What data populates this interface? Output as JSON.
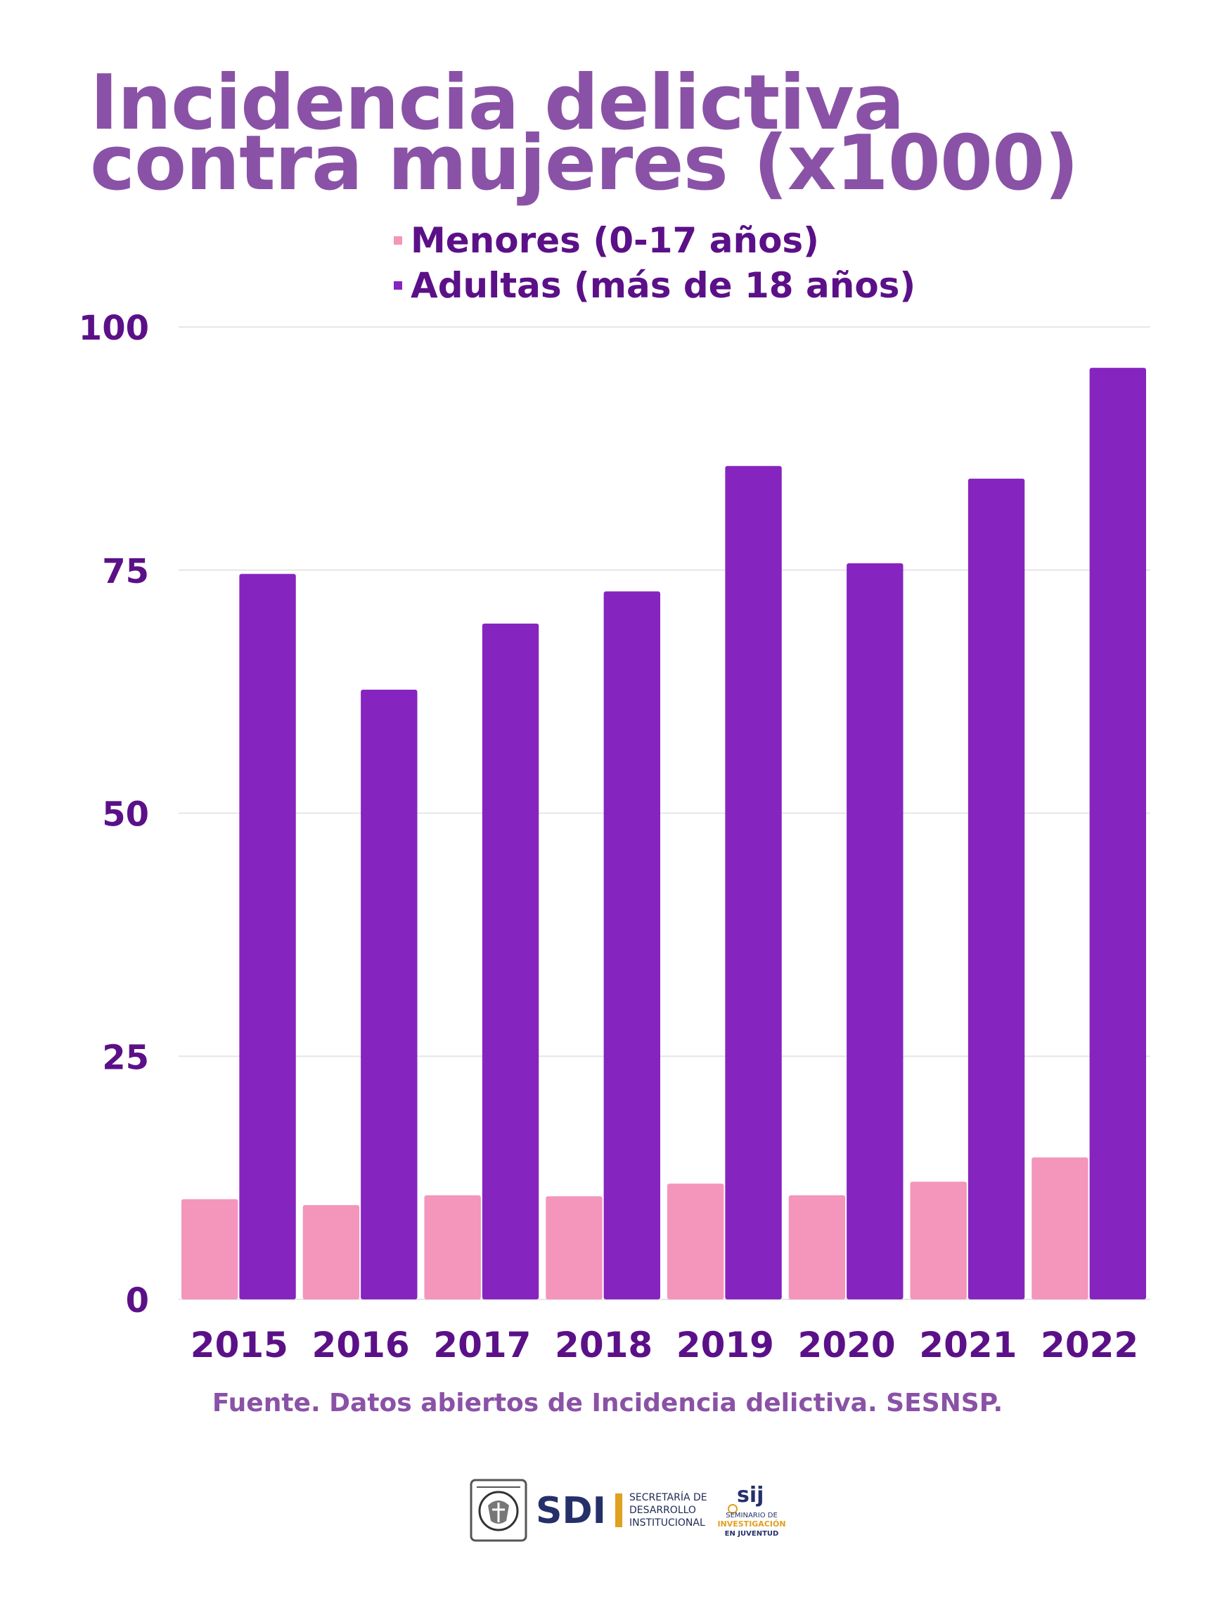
{
  "title": "Incidencia delictiva contra mujeres (x1000)",
  "colors": {
    "title": "#8a52a6",
    "axis_text": "#5b1088",
    "source": "#8a52a6",
    "grid": "#e6e6e6",
    "menores": "#f495bb",
    "adultas": "#8624bf"
  },
  "legend": [
    {
      "label": "Menores (0-17 años)",
      "color": "#f495bb"
    },
    {
      "label": "Adultas (más de 18 años)",
      "color": "#8624bf"
    }
  ],
  "source": "Fuente. Datos abiertos de Incidencia delictiva. SESNSP.",
  "logos": {
    "unam": "unam-seal",
    "sdi_mark": "SDI",
    "sdi_text": [
      "SECRETARÍA DE",
      "DESARROLLO",
      "INSTITUCIONAL"
    ],
    "sij_mark": "sij",
    "sij_text": [
      "SEMINARIO DE",
      "INVESTIGACIÓN",
      "EN JUVENTUD"
    ]
  },
  "chart_data": {
    "type": "bar",
    "categories": [
      "2015",
      "2016",
      "2017",
      "2018",
      "2019",
      "2020",
      "2021",
      "2022"
    ],
    "series": [
      {
        "name": "Menores (0-17 años)",
        "values": [
          10.3,
          9.7,
          10.7,
          10.6,
          11.9,
          10.7,
          12.1,
          14.6
        ]
      },
      {
        "name": "Adultas (más de 18 años)",
        "values": [
          74.6,
          62.7,
          69.5,
          72.8,
          85.7,
          75.7,
          84.4,
          95.8
        ]
      }
    ],
    "ylim": [
      0,
      100
    ],
    "yticks": [
      0,
      25,
      50,
      75,
      100
    ],
    "grid": true,
    "legend_position": "top"
  }
}
